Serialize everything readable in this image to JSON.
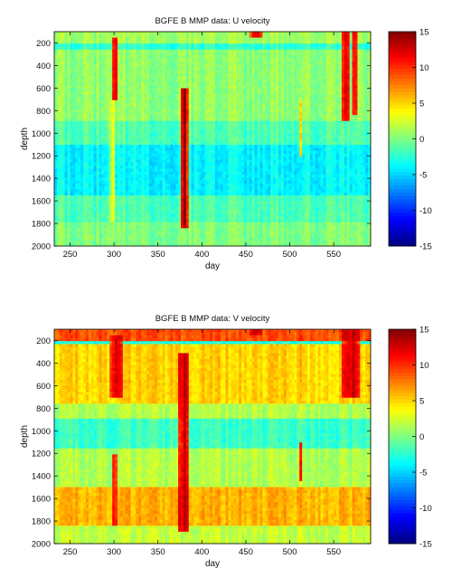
{
  "chart_data": [
    {
      "type": "heatmap",
      "title": "BGFE B MMP data: U velocity",
      "xlabel": "day",
      "ylabel": "depth",
      "xlim": [
        232,
        592
      ],
      "ylim": [
        2000,
        100
      ],
      "y_reversed": true,
      "xticks": [
        250,
        300,
        350,
        400,
        450,
        500,
        550
      ],
      "yticks": [
        200,
        400,
        600,
        800,
        1000,
        1200,
        1400,
        1600,
        1800,
        2000
      ],
      "colorbar": {
        "min": -15,
        "max": 15,
        "ticks": [
          15,
          10,
          5,
          0,
          -5,
          -10,
          -15
        ],
        "colormap": "jet"
      },
      "grid": false,
      "field": {
        "background_value": 0,
        "depth_layers": [
          {
            "depth": [
              100,
              200
            ],
            "value": 1
          },
          {
            "depth": [
              200,
              260
            ],
            "value": -2.5
          },
          {
            "depth": [
              260,
              900
            ],
            "value": 0.5
          },
          {
            "depth": [
              900,
              1100
            ],
            "value": -1.5
          },
          {
            "depth": [
              1100,
              1550
            ],
            "value": -4
          },
          {
            "depth": [
              1550,
              1800
            ],
            "value": -1.5
          },
          {
            "depth": [
              1800,
              2000
            ],
            "value": 0
          }
        ],
        "features": [
          {
            "day": [
              298,
              305
            ],
            "depth": [
              150,
              700
            ],
            "value": 13
          },
          {
            "day": [
              296,
              302
            ],
            "depth": [
              700,
              1800
            ],
            "value": 3
          },
          {
            "day": [
              375,
              386
            ],
            "depth": [
              600,
              1850
            ],
            "value": 14
          },
          {
            "day": [
              510,
              515
            ],
            "depth": [
              700,
              1200
            ],
            "value": 5
          },
          {
            "day": [
              560,
              568
            ],
            "depth": [
              100,
              900
            ],
            "value": 13
          },
          {
            "day": [
              570,
              578
            ],
            "depth": [
              100,
              850
            ],
            "value": 12
          },
          {
            "day": [
              455,
              470
            ],
            "depth": [
              100,
              150
            ],
            "value": 13
          }
        ]
      }
    },
    {
      "type": "heatmap",
      "title": "BGFE B MMP data: V velocity",
      "xlabel": "day",
      "ylabel": "depth",
      "xlim": [
        232,
        592
      ],
      "ylim": [
        2000,
        100
      ],
      "y_reversed": true,
      "xticks": [
        250,
        300,
        350,
        400,
        450,
        500,
        550
      ],
      "yticks": [
        200,
        400,
        600,
        800,
        1000,
        1200,
        1400,
        1600,
        1800,
        2000
      ],
      "colorbar": {
        "min": -15,
        "max": 15,
        "ticks": [
          15,
          10,
          5,
          0,
          -5,
          -10,
          -15
        ],
        "colormap": "jet"
      },
      "grid": false,
      "field": {
        "background_value": 3,
        "depth_layers": [
          {
            "depth": [
              100,
              200
            ],
            "value": 9
          },
          {
            "depth": [
              200,
              240
            ],
            "value": -3
          },
          {
            "depth": [
              240,
              750
            ],
            "value": 5
          },
          {
            "depth": [
              750,
              900
            ],
            "value": 1.5
          },
          {
            "depth": [
              900,
              1150
            ],
            "value": -2
          },
          {
            "depth": [
              1150,
              1500
            ],
            "value": 1.5
          },
          {
            "depth": [
              1500,
              1850
            ],
            "value": 6
          },
          {
            "depth": [
              1850,
              2000
            ],
            "value": 2
          }
        ],
        "features": [
          {
            "day": [
              295,
              310
            ],
            "depth": [
              150,
              700
            ],
            "value": 13
          },
          {
            "day": [
              297,
              304
            ],
            "depth": [
              1200,
              1850
            ],
            "value": 12
          },
          {
            "day": [
              374,
              386
            ],
            "depth": [
              300,
              1900
            ],
            "value": 14
          },
          {
            "day": [
              510,
              515
            ],
            "depth": [
              1100,
              1450
            ],
            "value": 10
          },
          {
            "day": [
              560,
              580
            ],
            "depth": [
              100,
              700
            ],
            "value": 13
          },
          {
            "day": [
              455,
              470
            ],
            "depth": [
              100,
              150
            ],
            "value": 13
          }
        ]
      }
    }
  ]
}
